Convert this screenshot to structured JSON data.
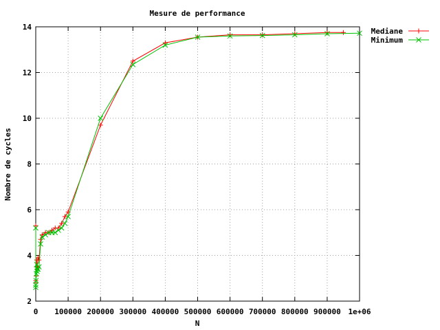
{
  "chart_data": {
    "type": "line",
    "title": "Mesure de performance",
    "xlabel": "N",
    "ylabel": "Nombre de cycles",
    "xlim": [
      0,
      1000000
    ],
    "ylim": [
      2,
      14
    ],
    "grid": true,
    "legend_position": "top-right, outside plot",
    "x_tick_labels": [
      "0",
      "100000",
      "200000",
      "300000",
      "400000",
      "500000",
      "600000",
      "700000",
      "800000",
      "900000",
      "1e+06"
    ],
    "y_tick_labels": [
      "2",
      "4",
      "6",
      "8",
      "10",
      "12",
      "14"
    ],
    "series": [
      {
        "name": "Mediane",
        "color": "#ff0000",
        "marker": "plus",
        "x": [
          1,
          10,
          100,
          1000,
          2000,
          3000,
          4000,
          5000,
          7000,
          10000,
          15000,
          20000,
          30000,
          40000,
          50000,
          60000,
          70000,
          80000,
          90000,
          100000,
          200000,
          300000,
          400000,
          500000,
          600000,
          700000,
          800000,
          900000,
          950000
        ],
        "y": [
          5.3,
          2.8,
          2.9,
          3.1,
          3.5,
          3.8,
          3.4,
          3.5,
          3.9,
          3.8,
          4.7,
          4.9,
          5.0,
          5.0,
          5.1,
          5.2,
          5.2,
          5.4,
          5.7,
          5.9,
          9.7,
          12.5,
          13.3,
          13.55,
          13.65,
          13.65,
          13.7,
          13.75,
          13.75
        ]
      },
      {
        "name": "Minimum",
        "color": "#00c000",
        "marker": "cross",
        "x": [
          1,
          10,
          100,
          1000,
          2000,
          3000,
          4000,
          5000,
          7000,
          10000,
          15000,
          20000,
          30000,
          40000,
          50000,
          60000,
          70000,
          80000,
          90000,
          100000,
          200000,
          300000,
          400000,
          500000,
          600000,
          700000,
          800000,
          900000,
          1000000
        ],
        "y": [
          5.2,
          2.7,
          2.6,
          2.9,
          3.2,
          3.6,
          3.3,
          3.4,
          3.4,
          3.5,
          4.5,
          4.8,
          4.9,
          5.0,
          5.0,
          5.0,
          5.1,
          5.2,
          5.4,
          5.7,
          10.0,
          12.35,
          13.2,
          13.55,
          13.6,
          13.62,
          13.65,
          13.7,
          13.72
        ]
      }
    ]
  }
}
